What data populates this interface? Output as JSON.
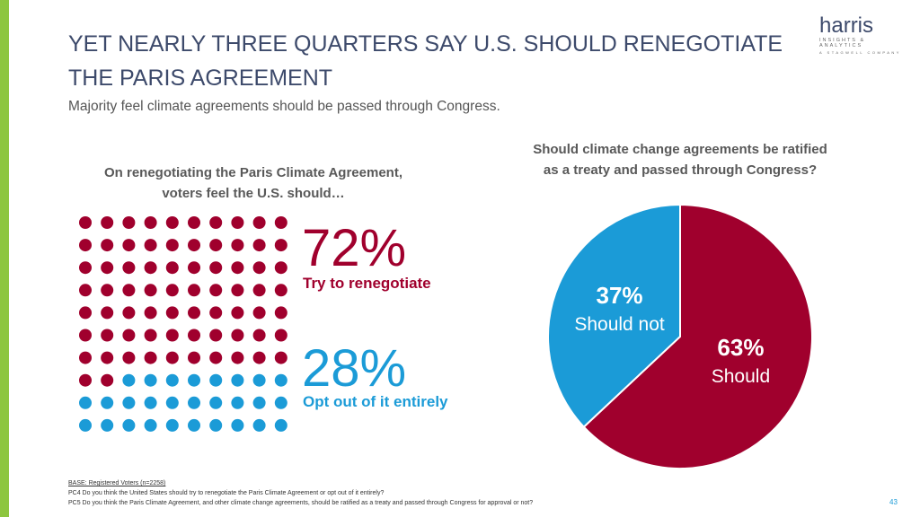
{
  "title": "YET NEARLY THREE QUARTERS SAY U.S. SHOULD RENEGOTIATE THE PARIS AGREEMENT",
  "subtitle": "Majority feel climate agreements should be passed through Congress.",
  "logo": {
    "name": "harris",
    "tagline": "INSIGHTS & ANALYTICS",
    "parent": "A STAGWELL COMPANY"
  },
  "chart_data": [
    {
      "type": "waffle",
      "title": "On renegotiating the Paris Climate Agreement, voters feel the U.S. should…",
      "categories": [
        "Try to renegotiate",
        "Opt out of it entirely"
      ],
      "values": [
        72,
        28
      ],
      "value_labels": [
        "72%",
        "28%"
      ],
      "colors": [
        "#a0002d",
        "#1b9bd7"
      ]
    },
    {
      "type": "pie",
      "title": "Should climate change agreements be ratified as a treaty and passed through Congress?",
      "categories": [
        "Should",
        "Should not"
      ],
      "values": [
        63,
        37
      ],
      "value_labels": [
        "63%",
        "37%"
      ],
      "colors": [
        "#a0002d",
        "#1b9bd7"
      ]
    }
  ],
  "footnotes": [
    "BASE: Registered Voters (n=2258)",
    "PC4 Do you think the United States should try to renegotiate the Paris Climate Agreement or opt out of it entirely?",
    "PC5 Do you think the Paris Climate Agreement, and other climate change agreements, should be ratified as a treaty and passed through Congress for approval or not?"
  ],
  "page_number": "43"
}
